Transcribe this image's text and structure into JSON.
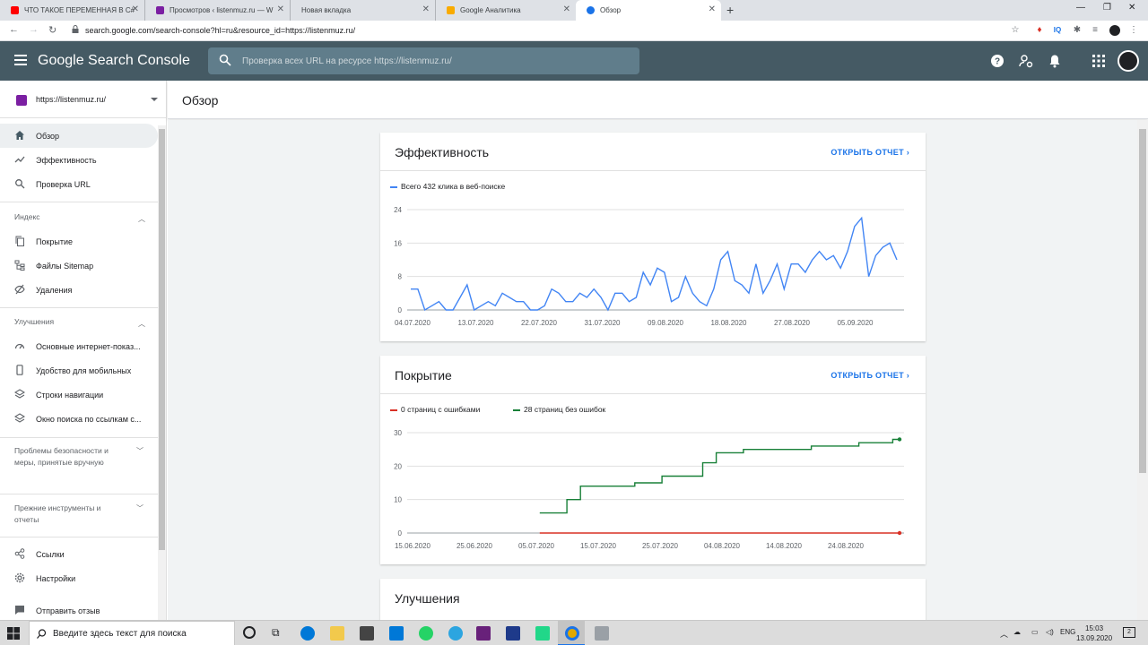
{
  "browser": {
    "tabs": [
      {
        "title": "ЧТО ТАКОЕ ПЕРЕМЕННАЯ В C#",
        "favicon_color": "#ff0000"
      },
      {
        "title": "Просмотров ‹ listenmuz.ru — W",
        "favicon_color": "#7b1fa2"
      },
      {
        "title": "Новая вкладка",
        "favicon_color": ""
      },
      {
        "title": "Google Аналитика",
        "favicon_color": "#f9ab00"
      },
      {
        "title": "Обзор",
        "favicon_color": "#1a73e8"
      }
    ],
    "new_tab_label": "+",
    "url": "search.google.com/search-console?hl=ru&resource_id=https://listenmuz.ru/"
  },
  "app": {
    "brand": "Google Search Console",
    "search_placeholder": "Проверка всех URL на ресурсе https://listenmuz.ru/"
  },
  "sidebar": {
    "property": "https://listenmuz.ru/",
    "items_top": [
      {
        "label": "Обзор",
        "icon": "home-icon",
        "selected": true
      },
      {
        "label": "Эффективность",
        "icon": "trending-icon"
      },
      {
        "label": "Проверка URL",
        "icon": "search-icon"
      }
    ],
    "section_index": "Индекс",
    "items_index": [
      {
        "label": "Покрытие",
        "icon": "file-copy-icon"
      },
      {
        "label": "Файлы Sitemap",
        "icon": "sitemap-icon"
      },
      {
        "label": "Удаления",
        "icon": "visibility-off-icon"
      }
    ],
    "section_improve": "Улучшения",
    "items_improve": [
      {
        "label": "Основные интернет-показ...",
        "icon": "speed-icon"
      },
      {
        "label": "Удобство для мобильных",
        "icon": "phone-icon"
      },
      {
        "label": "Строки навигации",
        "icon": "layers-icon"
      },
      {
        "label": "Окно поиска по ссылкам с...",
        "icon": "layers-icon"
      }
    ],
    "section_security": "Проблемы безопасности и меры, принятые вручную",
    "section_legacy": "Прежние инструменты и отчеты",
    "items_bottom": [
      {
        "label": "Ссылки",
        "icon": "links-icon"
      },
      {
        "label": "Настройки",
        "icon": "gear-icon"
      },
      {
        "label": "Отправить отзыв",
        "icon": "feedback-icon"
      }
    ]
  },
  "page": {
    "title": "Обзор"
  },
  "cards": {
    "performance": {
      "title": "Эффективность",
      "open_label": "ОТКРЫТЬ ОТЧЕТ",
      "legend": "Всего 432 клика в веб-поиске"
    },
    "coverage": {
      "title": "Покрытие",
      "open_label": "ОТКРЫТЬ ОТЧЕТ",
      "legend_errors": "0 страниц с ошибками",
      "legend_valid": "28 страниц без ошибок"
    },
    "improvements": {
      "title": "Улучшения"
    }
  },
  "chart_data": [
    {
      "type": "line",
      "title": "Эффективность",
      "series": [
        {
          "name": "Всего 432 клика в веб-поиске",
          "color": "#4285f4",
          "values": [
            5,
            5,
            0,
            1,
            2,
            0,
            0,
            3,
            6,
            0,
            1,
            2,
            1,
            4,
            3,
            2,
            2,
            0,
            0,
            1,
            5,
            4,
            2,
            2,
            4,
            3,
            5,
            3,
            0,
            4,
            4,
            2,
            3,
            9,
            6,
            10,
            9,
            2,
            3,
            8,
            4,
            2,
            1,
            5,
            12,
            14,
            7,
            6,
            4,
            11,
            4,
            7,
            11,
            5,
            11,
            11,
            9,
            12,
            14,
            12,
            13,
            10,
            14,
            20,
            22,
            8,
            13,
            15,
            16,
            12
          ]
        }
      ],
      "x_ticks": [
        "04.07.2020",
        "13.07.2020",
        "22.07.2020",
        "31.07.2020",
        "09.08.2020",
        "18.08.2020",
        "27.08.2020",
        "05.09.2020"
      ],
      "y_ticks": [
        0,
        8,
        16,
        24
      ],
      "ylim": [
        0,
        24
      ]
    },
    {
      "type": "line",
      "title": "Покрытие",
      "series": [
        {
          "name": "0 страниц с ошибками",
          "color": "#d93025",
          "start_index": 19,
          "values": [
            0,
            0,
            0,
            0,
            0,
            0,
            0,
            0,
            0,
            0,
            0,
            0,
            0,
            0,
            0,
            0,
            0,
            0,
            0,
            0,
            0,
            0,
            0,
            0,
            0,
            0,
            0,
            0,
            0,
            0,
            0,
            0,
            0,
            0,
            0,
            0,
            0,
            0,
            0,
            0,
            0,
            0,
            0,
            0,
            0,
            0,
            0,
            0,
            0,
            0,
            0,
            0,
            0,
            0
          ]
        },
        {
          "name": "28 страниц без ошибок",
          "color": "#188038",
          "start_index": 19,
          "values": [
            6,
            6,
            6,
            6,
            10,
            10,
            14,
            14,
            14,
            14,
            14,
            14,
            14,
            14,
            15,
            15,
            15,
            15,
            17,
            17,
            17,
            17,
            17,
            17,
            21,
            21,
            24,
            24,
            24,
            24,
            25,
            25,
            25,
            25,
            25,
            25,
            25,
            25,
            25,
            25,
            26,
            26,
            26,
            26,
            26,
            26,
            26,
            27,
            27,
            27,
            27,
            27,
            28,
            28
          ]
        }
      ],
      "x_ticks": [
        "15.06.2020",
        "25.06.2020",
        "05.07.2020",
        "15.07.2020",
        "25.07.2020",
        "04.08.2020",
        "14.08.2020",
        "24.08.2020"
      ],
      "y_ticks": [
        0,
        10,
        20,
        30
      ],
      "ylim": [
        0,
        30
      ]
    }
  ],
  "taskbar": {
    "search_placeholder": "Введите здесь текст для поиска",
    "lang": "ENG",
    "time": "15:03",
    "date": "13.09.2020",
    "notifications": "2"
  }
}
